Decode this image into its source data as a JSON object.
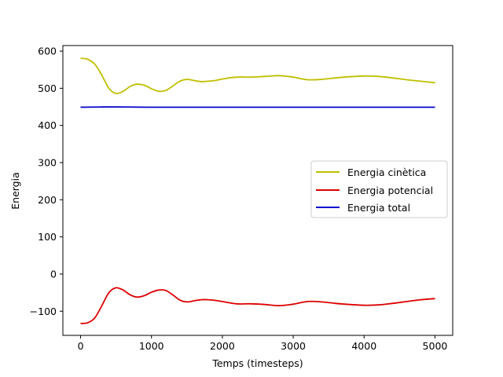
{
  "chart_data": {
    "type": "line",
    "title": "",
    "xlabel": "Temps (timesteps)",
    "ylabel": "Energia",
    "xlim": [
      -250,
      5250
    ],
    "ylim": [
      -165,
      615
    ],
    "xticks": [
      0,
      1000,
      2000,
      3000,
      4000,
      5000
    ],
    "xtick_labels": [
      "0",
      "1000",
      "2000",
      "3000",
      "4000",
      "5000"
    ],
    "yticks": [
      -100,
      0,
      100,
      200,
      300,
      400,
      500,
      600
    ],
    "ytick_labels": [
      "−100",
      "0",
      "100",
      "200",
      "300",
      "400",
      "500",
      "600"
    ],
    "grid": false,
    "legend_position": "center-right",
    "series": [
      {
        "name": "Energia cinètica",
        "color": "#bfbf00",
        "x": [
          0,
          100,
          200,
          300,
          400,
          500,
          600,
          700,
          800,
          900,
          1000,
          1100,
          1200,
          1300,
          1400,
          1500,
          1600,
          1700,
          1800,
          1900,
          2000,
          2200,
          2400,
          2600,
          2800,
          3000,
          3200,
          3400,
          3600,
          3800,
          4000,
          4200,
          4400,
          4600,
          4800,
          5000
        ],
        "values": [
          581,
          578,
          565,
          535,
          500,
          486,
          492,
          505,
          511,
          508,
          499,
          492,
          494,
          506,
          519,
          524,
          521,
          518,
          519,
          521,
          525,
          530,
          530,
          532,
          534,
          530,
          523,
          524,
          528,
          531,
          533,
          532,
          528,
          523,
          519,
          515
        ]
      },
      {
        "name": "Energia potencial",
        "color": "#dd0000",
        "x": [
          0,
          100,
          200,
          300,
          400,
          500,
          600,
          700,
          800,
          900,
          1000,
          1100,
          1200,
          1300,
          1400,
          1500,
          1600,
          1700,
          1800,
          1900,
          2000,
          2200,
          2400,
          2600,
          2800,
          3000,
          3200,
          3400,
          3600,
          3800,
          4000,
          4200,
          4400,
          4600,
          4800,
          5000
        ],
        "values": [
          -133,
          -131,
          -118,
          -85,
          -50,
          -37,
          -43,
          -56,
          -62,
          -58,
          -49,
          -43,
          -44,
          -56,
          -70,
          -75,
          -72,
          -69,
          -69,
          -71,
          -74,
          -80,
          -80,
          -82,
          -85,
          -81,
          -74,
          -75,
          -79,
          -82,
          -84,
          -83,
          -79,
          -74,
          -69,
          -66
        ]
      },
      {
        "name": "Energia total",
        "color": "#0000cc",
        "x": [
          0,
          500,
          1000,
          2000,
          3000,
          4000,
          5000
        ],
        "values": [
          449,
          450,
          449,
          449,
          449,
          449,
          449
        ]
      }
    ]
  }
}
